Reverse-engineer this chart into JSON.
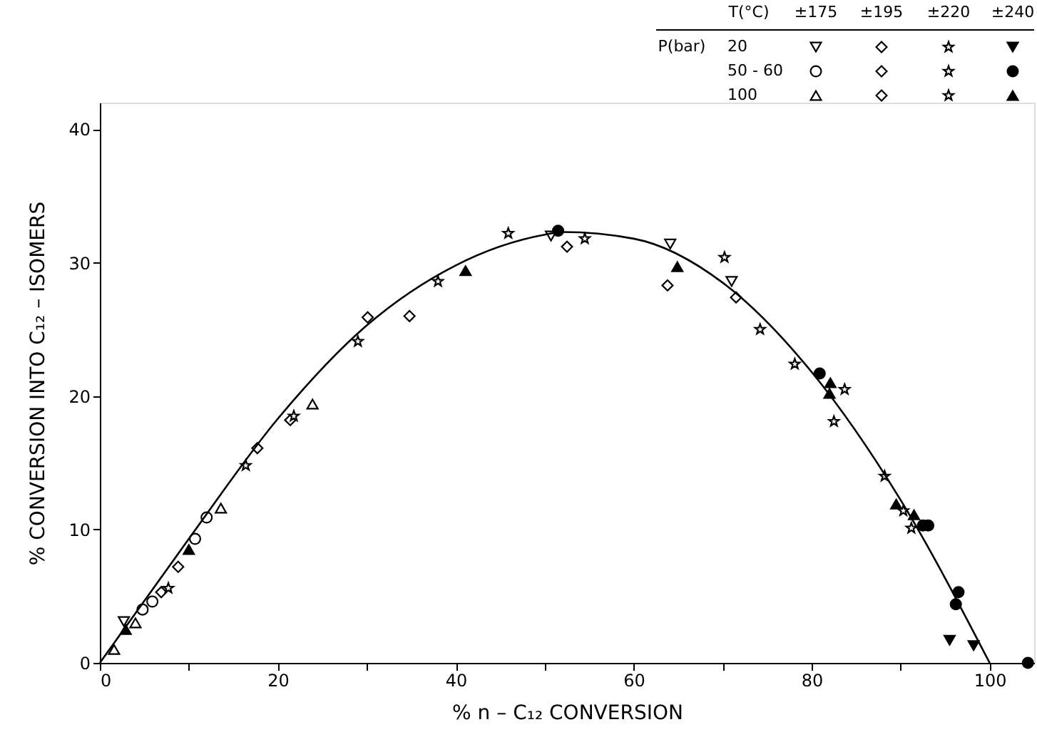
{
  "chart_data": {
    "type": "scatter",
    "xlabel": "% n – C₁₂ CONVERSION",
    "ylabel": "% CONVERSION INTO C₁₂ – ISOMERS",
    "xlim": [
      0,
      105
    ],
    "ylim": [
      0,
      42
    ],
    "xticks": [
      0,
      {
        "value": 10,
        "label": null
      },
      20,
      {
        "value": 30,
        "label": null
      },
      40,
      {
        "value": 50,
        "label": null
      },
      60,
      {
        "value": 70,
        "label": null
      },
      80,
      {
        "value": 90,
        "label": null
      },
      100
    ],
    "yticks": [
      0,
      10,
      20,
      30,
      40
    ],
    "grid": false,
    "annotations": [
      "T(°C)",
      "±175",
      "±195",
      "±220",
      "±240",
      "P(bar)",
      "20",
      "50 - 60",
      "100"
    ],
    "series": [
      {
        "color": "#ffffff",
        "marker": "triangle-down",
        "x": [
          2.7,
          50.7,
          64.1,
          71.0
        ],
        "values": [
          3.1,
          32.0,
          31.4,
          28.6
        ]
      },
      {
        "color": "#ffffff",
        "marker": "diamond",
        "x": [
          34.8,
          52.5,
          63.8,
          71.5
        ],
        "values": [
          26.0,
          31.2,
          28.3,
          27.4
        ]
      },
      {
        "color": "#ffffff",
        "marker": "star",
        "x": [
          74.2,
          78.1,
          88.2
        ],
        "values": [
          25.0,
          22.4,
          14.0
        ]
      },
      {
        "color": "#000000",
        "marker": "triangle-down",
        "x": [
          95.5,
          98.2
        ],
        "values": [
          1.7,
          1.3
        ]
      },
      {
        "color": "#ffffff",
        "marker": "circle",
        "x": [
          4.8,
          5.9,
          10.7,
          12.0
        ],
        "values": [
          4.0,
          4.6,
          9.3,
          10.9
        ]
      },
      {
        "color": "#ffffff",
        "marker": "diamond",
        "x": [
          8.8,
          17.7,
          30.1
        ],
        "values": [
          7.2,
          16.1,
          25.9
        ]
      },
      {
        "color": "#ffffff",
        "marker": "star",
        "x": [
          83.7,
          82.5,
          91.2,
          90.3
        ],
        "values": [
          20.5,
          18.1,
          10.1,
          11.4
        ]
      },
      {
        "color": "#000000",
        "marker": "circle",
        "x": [
          51.5,
          80.9,
          92.5,
          93.1,
          96.5,
          96.2,
          104.3
        ],
        "values": [
          32.4,
          21.7,
          10.3,
          10.3,
          5.3,
          4.4,
          0
        ]
      },
      {
        "color": "#ffffff",
        "marker": "triangle",
        "x": [
          1.6,
          4.0,
          13.6,
          23.9
        ],
        "values": [
          1.0,
          3.0,
          11.6,
          19.4
        ]
      },
      {
        "color": "#ffffff",
        "marker": "diamond",
        "x": [
          6.9,
          21.4
        ],
        "values": [
          5.3,
          18.2
        ]
      },
      {
        "color": "#ffffff",
        "marker": "star",
        "x": [
          7.7,
          16.4,
          21.8,
          29.0,
          38.0,
          45.9,
          54.5,
          70.2
        ],
        "values": [
          5.6,
          14.8,
          18.5,
          24.1,
          28.6,
          32.2,
          31.8,
          30.4
        ]
      },
      {
        "color": "#000000",
        "marker": "triangle",
        "x": [
          2.9,
          10.0,
          41.1,
          64.9,
          82.1,
          82.0,
          89.5,
          91.5
        ],
        "values": [
          2.5,
          8.5,
          29.4,
          29.7,
          21.0,
          20.2,
          11.9,
          11.1
        ]
      },
      {
        "type": "line",
        "color": "#000000",
        "marker": "none",
        "line_style": "solid",
        "x": [
          0,
          10,
          20,
          30,
          40,
          50,
          52,
          60,
          70,
          80,
          90,
          100
        ],
        "values": [
          0,
          9.3,
          18.3,
          25.3,
          29.8,
          32.1,
          32.3,
          31.8,
          28.5,
          21.8,
          12.2,
          0
        ]
      }
    ]
  }
}
